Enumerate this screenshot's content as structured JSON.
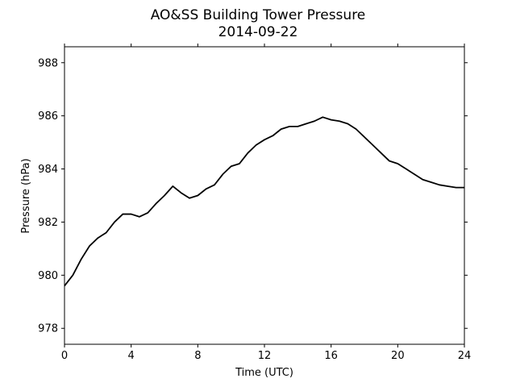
{
  "chart_data": {
    "type": "line",
    "title": "AO&SS Building Tower Pressure",
    "subtitle": "2014-09-22",
    "xlabel": "Time (UTC)",
    "ylabel": "Pressure (hPa)",
    "xlim": [
      0,
      24
    ],
    "ylim": [
      977.4,
      988.6
    ],
    "xticks": [
      0,
      4,
      8,
      12,
      16,
      20,
      24
    ],
    "yticks": [
      978,
      980,
      982,
      984,
      986,
      988
    ],
    "grid": false,
    "series": [
      {
        "color": "#000000",
        "x": [
          0,
          0.5,
          1,
          1.5,
          2,
          2.5,
          3,
          3.5,
          4,
          4.5,
          5,
          5.5,
          6,
          6.5,
          7,
          7.5,
          8,
          8.5,
          9,
          9.5,
          10,
          10.5,
          11,
          11.5,
          12,
          12.5,
          13,
          13.5,
          14,
          14.5,
          15,
          15.5,
          16,
          16.5,
          17,
          17.5,
          18,
          18.5,
          19,
          19.5,
          20,
          20.5,
          21,
          21.5,
          22,
          22.5,
          23,
          23.5,
          24
        ],
        "y": [
          979.6,
          980.0,
          980.6,
          981.1,
          981.4,
          981.6,
          982.0,
          982.3,
          982.3,
          982.2,
          982.35,
          982.7,
          983.0,
          983.35,
          983.1,
          982.9,
          983.0,
          983.25,
          983.4,
          983.8,
          984.1,
          984.2,
          984.6,
          984.9,
          985.1,
          985.25,
          985.5,
          985.6,
          985.6,
          985.7,
          985.8,
          985.95,
          985.85,
          985.8,
          985.7,
          985.5,
          985.2,
          984.9,
          984.6,
          984.3,
          984.2,
          984.0,
          983.8,
          983.6,
          983.5,
          983.4,
          983.35,
          983.3,
          983.3
        ]
      }
    ]
  }
}
